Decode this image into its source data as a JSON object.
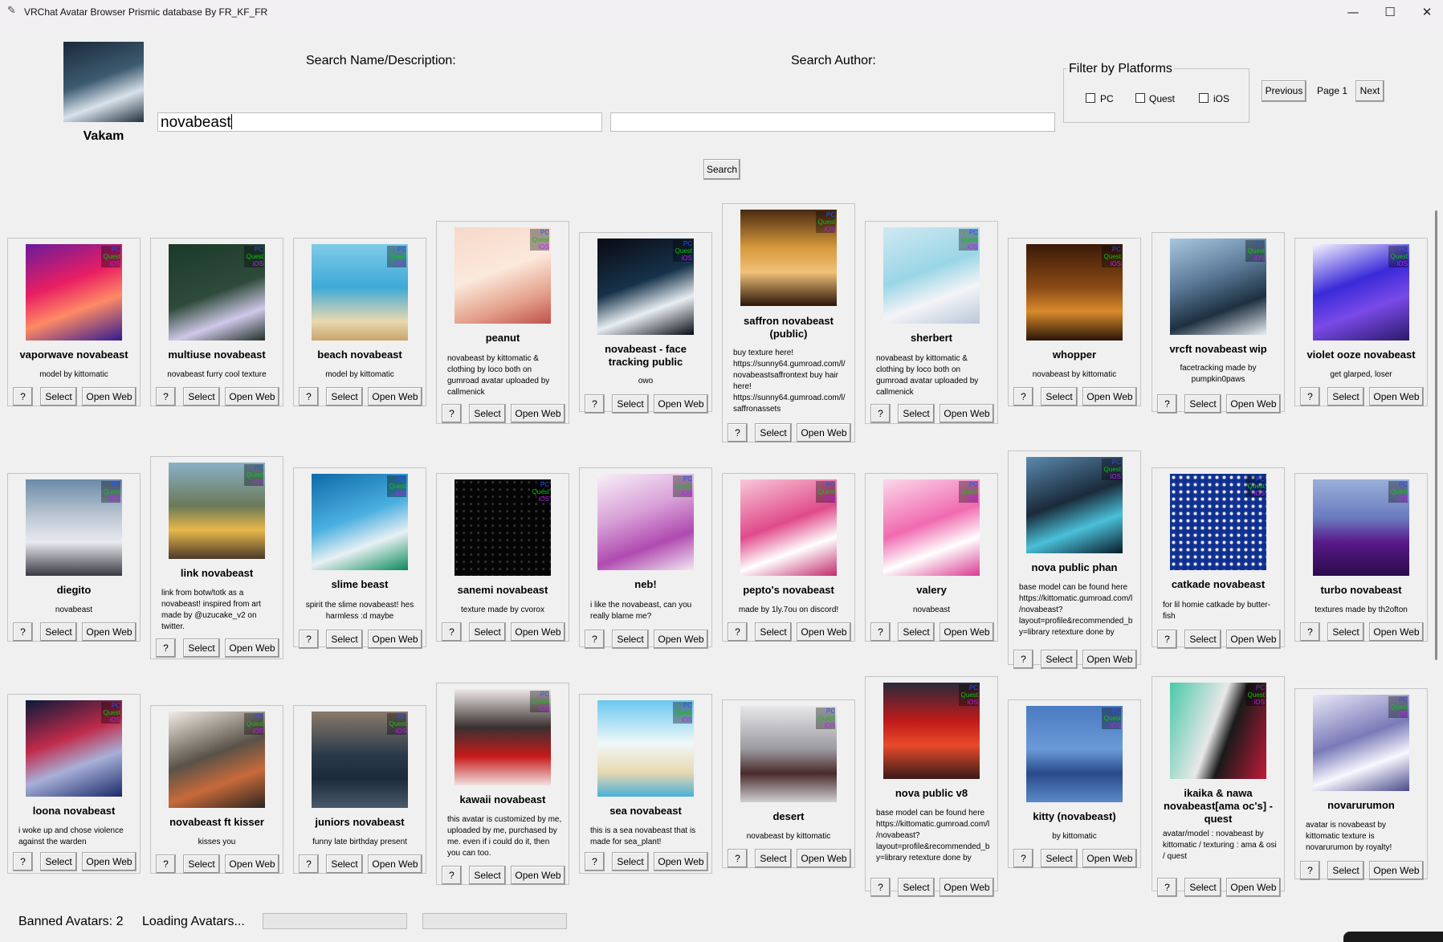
{
  "window": {
    "title": "VRChat Avatar Browser Prismic database By FR_KF_FR",
    "minimize_glyph": "—",
    "maximize_glyph": "☐",
    "close_glyph": "✕"
  },
  "user": {
    "name": "Vakam",
    "avatar_icon": "user-avatar-picture"
  },
  "search": {
    "name_label": "Search Name/Description:",
    "name_value": "novabeast",
    "author_label": "Search Author:",
    "author_value": "",
    "button_label": "Search"
  },
  "filter": {
    "title": "Filter by Platforms",
    "options": [
      {
        "label": "PC",
        "checked": false
      },
      {
        "label": "Quest",
        "checked": false
      },
      {
        "label": "iOS",
        "checked": false
      }
    ]
  },
  "pagination": {
    "prev_label": "Previous",
    "page_label": "Page 1",
    "next_label": "Next"
  },
  "card_buttons": {
    "help": "?",
    "select": "Select",
    "open_web": "Open Web"
  },
  "platform_badge": {
    "pc": "PC",
    "quest": "Quest",
    "ios": "iOS"
  },
  "colors": {
    "pc": "#2d4fff",
    "quest": "#12c212",
    "ios": "#c11cff",
    "progress": "#06b025"
  },
  "avatars": [
    {
      "title": "vaporwave novabeast",
      "description": "model by kittomatic"
    },
    {
      "title": "multiuse novabeast",
      "description": "novabeast furry cool texture"
    },
    {
      "title": "beach novabeast",
      "description": "model by kittomatic"
    },
    {
      "title": "peanut",
      "description": "novabeast by kittomatic & clothing by loco both on gumroad avatar uploaded by callmenick"
    },
    {
      "title": "novabeast - face tracking public",
      "description": "owo"
    },
    {
      "title": "saffron novabeast (public)",
      "description": "buy texture here! https://sunny64.gumroad.com/l/novabeastsaffrontext buy hair here! https://sunny64.gumroad.com/l/saffronassets"
    },
    {
      "title": "sherbert",
      "description": "novabeast by kittomatic & clothing by loco both on gumroad avatar uploaded by callmenick"
    },
    {
      "title": "whopper",
      "description": "novabeast by kittomatic"
    },
    {
      "title": "vrcft novabeast wip",
      "description": "facetracking made by pumpkin0paws"
    },
    {
      "title": "violet ooze novabeast",
      "description": "get glarped, loser"
    },
    {
      "title": "diegito",
      "description": "novabeast"
    },
    {
      "title": "link novabeast",
      "description": "link from botw/totk as a novabeast! inspired from art made by @uzucake_v2 on twitter."
    },
    {
      "title": "slime beast",
      "description": "spirit the slime novabeast! hes harmless :d maybe"
    },
    {
      "title": "sanemi novabeast",
      "description": "texture made by cvorox"
    },
    {
      "title": "neb!",
      "description": "i like the novabeast, can you really blame me?"
    },
    {
      "title": "pepto's novabeast",
      "description": "made by 1ly.7ou on discord!"
    },
    {
      "title": "valery",
      "description": "novabeast"
    },
    {
      "title": "nova public phan",
      "description": "base model can be found here https://kittomatic.gumroad.com/l/novabeast?layout=profile&recommended_by=library retexture done by"
    },
    {
      "title": "catkade novabeast",
      "description": "for lil homie catkade by butter-fish"
    },
    {
      "title": "turbo novabeast",
      "description": "textures made by th2ofton"
    },
    {
      "title": "loona novabeast",
      "description": "i woke up and chose violence against the warden"
    },
    {
      "title": "novabeast ft kisser",
      "description": "kisses you"
    },
    {
      "title": "juniors novabeast",
      "description": "funny late birthday present"
    },
    {
      "title": "kawaii novabeast",
      "description": "this avatar is customized by me, uploaded by me, purchased by me. even if i could do it, then you can too."
    },
    {
      "title": "sea novabeast",
      "description": "this is a sea novabeast that is made for sea_plant!"
    },
    {
      "title": "desert",
      "description": "novabeast by kittomatic"
    },
    {
      "title": "nova public v8",
      "description": "base model can be found here https://kittomatic.gumroad.com/l/novabeast?layout=profile&recommended_by=library retexture done by"
    },
    {
      "title": "kitty (novabeast)",
      "description": "by kittomatic"
    },
    {
      "title": "ikaika & nawa novabeast[ama oc's] - quest",
      "description": "avatar/model : novabeast by kittomatic / texturing : ama & osi / quest"
    },
    {
      "title": "novarurumon",
      "description": "avatar is novabeast by kittomatic texture is novarurumon by royalty!"
    }
  ],
  "footer": {
    "banned_label": "Banned Avatars: 2",
    "loading_label": "Loading Avatars...",
    "progress1": 0.0,
    "progress2": 0.0
  }
}
